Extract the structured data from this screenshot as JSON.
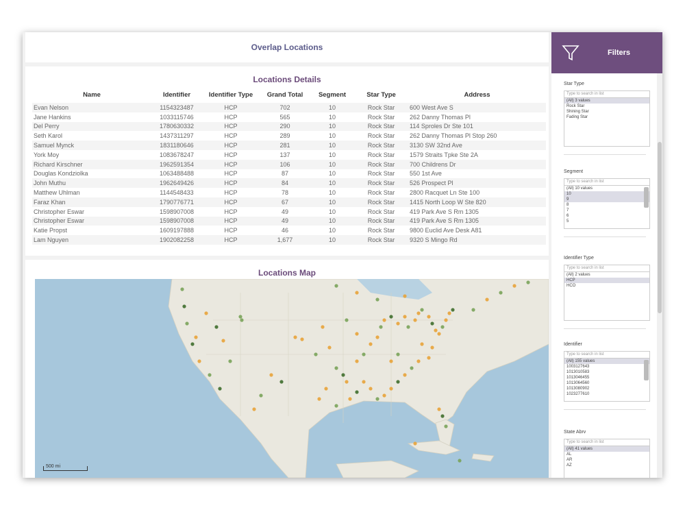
{
  "page": {
    "title": "Overlap Locations"
  },
  "details": {
    "title": "Locations Details",
    "columns": [
      "Name",
      "Identifier",
      "Identifier Type",
      "Grand Total",
      "Segment",
      "Star Type",
      "Address"
    ],
    "rows": [
      [
        "Evan Nelson",
        "1154323487",
        "HCP",
        "702",
        "10",
        "Rock Star",
        "600 West Ave S"
      ],
      [
        "Jane Hankins",
        "1033115746",
        "HCP",
        "565",
        "10",
        "Rock Star",
        "262 Danny Thomas Pl"
      ],
      [
        "Del Perry",
        "1780630332",
        "HCP",
        "290",
        "10",
        "Rock Star",
        "114 Sproles Dr Ste 101"
      ],
      [
        "Seth Karol",
        "1437311297",
        "HCP",
        "289",
        "10",
        "Rock Star",
        "262 Danny Thomas Pl Stop 260"
      ],
      [
        "Samuel Mynck",
        "1831180646",
        "HCP",
        "281",
        "10",
        "Rock Star",
        "3130 SW 32nd Ave"
      ],
      [
        "York Moy",
        "1083678247",
        "HCP",
        "137",
        "10",
        "Rock Star",
        "1579 Straits Tpke Ste 2A"
      ],
      [
        "Richard Kirschner",
        "1962591354",
        "HCP",
        "106",
        "10",
        "Rock Star",
        "700 Childrens Dr"
      ],
      [
        "Douglas Kondziolka",
        "1063488488",
        "HCP",
        "87",
        "10",
        "Rock Star",
        "550 1st Ave"
      ],
      [
        "John Muthu",
        "1962649426",
        "HCP",
        "84",
        "10",
        "Rock Star",
        "526 Prospect Pl"
      ],
      [
        "Matthew Uhlman",
        "1144548433",
        "HCP",
        "78",
        "10",
        "Rock Star",
        "2800 Racquet Ln Ste 100"
      ],
      [
        "Faraz Khan",
        "1790776771",
        "HCP",
        "67",
        "10",
        "Rock Star",
        "1415 North Loop W Ste 820"
      ],
      [
        "Christopher Eswar",
        "1598907008",
        "HCP",
        "49",
        "10",
        "Rock Star",
        "419 Park Ave S Rm 1305"
      ],
      [
        "Christopher Eswar",
        "1598907008",
        "HCP",
        "49",
        "10",
        "Rock Star",
        "419 Park Ave S Rm 1305"
      ],
      [
        "Katie Propst",
        "1609197888",
        "HCP",
        "46",
        "10",
        "Rock Star",
        "9800 Euclid Ave Desk A81"
      ],
      [
        "Lam Nguyen",
        "1902082258",
        "HCP",
        "1,677",
        "10",
        "Rock Star",
        "9320 S Mingo Rd"
      ]
    ]
  },
  "map": {
    "title": "Locations Map",
    "scale_label": "500 mi",
    "marker_colors": {
      "primary": "#e8a33a",
      "secondary": "#7aa35a",
      "tertiary": "#3f6e2e"
    }
  },
  "sidebar": {
    "title": "Filters",
    "accent": "#6e4e7e",
    "filters": [
      {
        "label": "Star Type",
        "placeholder": "Type to search in list",
        "options": [
          "(All) 3 values",
          "Rock Star",
          "Shining Star",
          "Fading Star"
        ],
        "selected": [
          0
        ]
      },
      {
        "label": "Segment",
        "placeholder": "Type to search in list",
        "options": [
          "(All) 10 values",
          "10",
          "9",
          "8",
          "7",
          "6",
          "5"
        ],
        "selected": [
          1,
          2
        ]
      },
      {
        "label": "Identifier Type",
        "placeholder": "Type to search in list",
        "options": [
          "(All) 2 values",
          "HCP",
          "HCO"
        ],
        "selected": [
          1
        ]
      },
      {
        "label": "Identifier",
        "placeholder": "Type to search in list",
        "options": [
          "(All) 155 values",
          "1003127643",
          "1013010583",
          "1013046455",
          "1013064560",
          "1013080902",
          "1023277610"
        ],
        "selected": [
          0
        ]
      },
      {
        "label": "State Abrv",
        "placeholder": "Type to search in list",
        "options": [
          "(All) 41 values",
          "AL",
          "AR",
          "AZ"
        ],
        "selected": [
          0
        ]
      }
    ]
  }
}
